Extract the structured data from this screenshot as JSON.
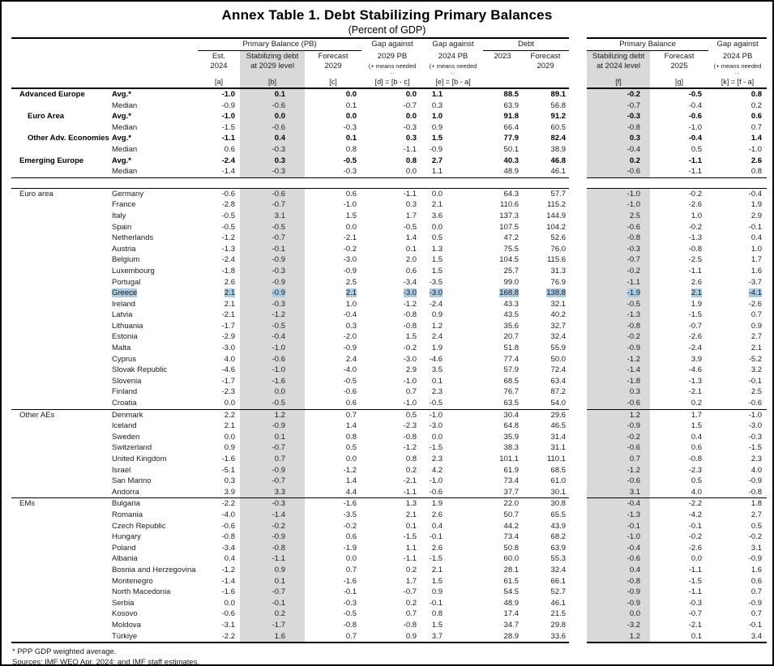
{
  "title": "Annex Table 1. Debt Stabilizing Primary Balances",
  "subtitle": "(Percent of GDP)",
  "colors": {
    "shaded_column": "#d9d9d9",
    "highlight": "#a9cbe3"
  },
  "header": {
    "groups": {
      "pb": "Primary Balance (PB)",
      "gap1": "Gap against",
      "gap2": "Gap against",
      "debt": "Debt",
      "pb2": "Primary Balance",
      "gap3": "Gap against"
    },
    "cols": {
      "a": {
        "l1": "Est.",
        "l2": "2024",
        "l3": "",
        "l4": "[a]"
      },
      "b": {
        "l1": "Stabilizing debt",
        "l2": "at 2029 level",
        "l3": "",
        "l4": "[b]"
      },
      "c": {
        "l1": "Forecast",
        "l2": "2029",
        "l3": "",
        "l4": "[c]"
      },
      "d": {
        "l1": "2029 PB",
        "l2": "(+ means needed",
        "l3": "…",
        "l4": "[d] = [b - c]"
      },
      "e": {
        "l1": "2024 PB",
        "l2": "(+ means needed",
        "l3": "…",
        "l4": "[e] = [b - a]"
      },
      "debt2023": {
        "l1": "2023",
        "l2": "",
        "l3": "",
        "l4": ""
      },
      "debt2029": {
        "l1": "Forecast",
        "l2": "2029",
        "l3": "",
        "l4": ""
      },
      "f": {
        "l1": "Stabilizing debt",
        "l2": "at 2024 level",
        "l3": "",
        "l4": "[f]"
      },
      "g": {
        "l1": "Forecast",
        "l2": "2025",
        "l3": "",
        "l4": "[g]"
      },
      "k": {
        "l1": "2024 PB",
        "l2": "(+ means needed",
        "l3": "…",
        "l4": "[k] = [f - a]"
      }
    }
  },
  "sections": [
    {
      "id": "aggregates",
      "rows": [
        {
          "group": "Advanced Europe",
          "name": "Avg.*",
          "bold": true,
          "v": [
            "-1.0",
            "0.1",
            "0.0",
            "0.0",
            "1.1",
            "88.5",
            "89.1",
            "-0.2",
            "-0.5",
            "0.8"
          ]
        },
        {
          "group": "",
          "name": "Median",
          "v": [
            "-0.9",
            "-0.6",
            "0.1",
            "-0.7",
            "0.3",
            "63.9",
            "56.8",
            "-0.7",
            "-0.4",
            "0.2"
          ]
        },
        {
          "group": "Euro Area",
          "name": "Avg.*",
          "bold": true,
          "indent": true,
          "v": [
            "-1.0",
            "0.0",
            "0.0",
            "0.0",
            "1.0",
            "91.8",
            "91.2",
            "-0.3",
            "-0.6",
            "0.6"
          ]
        },
        {
          "group": "",
          "name": "Median",
          "v": [
            "-1.5",
            "-0.6",
            "-0.3",
            "-0.3",
            "0.9",
            "66.4",
            "60.5",
            "-0.8",
            "-1.0",
            "0.7"
          ]
        },
        {
          "group": "Other Adv. Economies",
          "name": "Avg.*",
          "bold": true,
          "indent": true,
          "v": [
            "-1.1",
            "0.4",
            "0.1",
            "0.3",
            "1.5",
            "77.9",
            "82.4",
            "0.3",
            "-0.4",
            "1.4"
          ]
        },
        {
          "group": "",
          "name": "Median",
          "v": [
            "0.6",
            "-0.3",
            "0.8",
            "-1.1",
            "-0.9",
            "50.1",
            "38.9",
            "-0.4",
            "0.5",
            "-1.0"
          ]
        },
        {
          "group": "Emerging Europe",
          "name": "Avg.*",
          "bold": true,
          "v": [
            "-2.4",
            "0.3",
            "-0.5",
            "0.8",
            "2.7",
            "40.3",
            "46.8",
            "0.2",
            "-1.1",
            "2.6"
          ]
        },
        {
          "group": "",
          "name": "Median",
          "v": [
            "-1.4",
            "-0.3",
            "-0.3",
            "0.0",
            "1.1",
            "48.9",
            "46.1",
            "-0.6",
            "-1.1",
            "0.8"
          ]
        }
      ]
    },
    {
      "id": "euro-area",
      "rows": [
        {
          "group": "Euro area",
          "name": "Germany",
          "v": [
            "-0.6",
            "-0.6",
            "0.6",
            "-1.1",
            "0.0",
            "64.3",
            "57.7",
            "-1.0",
            "-0.2",
            "-0.4"
          ]
        },
        {
          "group": "",
          "name": "France",
          "v": [
            "-2.8",
            "-0.7",
            "-1.0",
            "0.3",
            "2.1",
            "110.6",
            "115.2",
            "-1.0",
            "-2.6",
            "1.9"
          ]
        },
        {
          "group": "",
          "name": "Italy",
          "v": [
            "-0.5",
            "3.1",
            "1.5",
            "1.7",
            "3.6",
            "137.3",
            "144.9",
            "2.5",
            "1.0",
            "2.9"
          ]
        },
        {
          "group": "",
          "name": "Spain",
          "v": [
            "-0.5",
            "-0.5",
            "0.0",
            "-0.5",
            "0.0",
            "107.5",
            "104.2",
            "-0.6",
            "-0.2",
            "-0.1"
          ]
        },
        {
          "group": "",
          "name": "Netherlands",
          "v": [
            "-1.2",
            "-0.7",
            "-2.1",
            "1.4",
            "0.5",
            "47.2",
            "52.6",
            "-0.8",
            "-1.3",
            "0.4"
          ]
        },
        {
          "group": "",
          "name": "Austria",
          "v": [
            "-1.3",
            "-0.1",
            "-0.2",
            "0.1",
            "1.3",
            "75.5",
            "76.0",
            "-0.3",
            "-0.8",
            "1.0"
          ]
        },
        {
          "group": "",
          "name": "Belgium",
          "v": [
            "-2.4",
            "-0.9",
            "-3.0",
            "2.0",
            "1.5",
            "104.5",
            "115.6",
            "-0.7",
            "-2.5",
            "1.7"
          ]
        },
        {
          "group": "",
          "name": "Luxembourg",
          "v": [
            "-1.8",
            "-0.3",
            "-0.9",
            "0.6",
            "1.5",
            "25.7",
            "31.3",
            "-0.2",
            "-1.1",
            "1.6"
          ]
        },
        {
          "group": "",
          "name": "Portugal",
          "v": [
            "2.6",
            "-0.9",
            "2.5",
            "-3.4",
            "-3.5",
            "99.0",
            "76.9",
            "-1.1",
            "2.6",
            "-3.7"
          ]
        },
        {
          "group": "",
          "name": "Greece",
          "highlight": true,
          "v": [
            "2.1",
            "-0.9",
            "2.1",
            "-3.0",
            "-3.0",
            "168.8",
            "138.8",
            "-1.9",
            "2.1",
            "-4.1"
          ]
        },
        {
          "group": "",
          "name": "Ireland",
          "v": [
            "2.1",
            "-0.3",
            "1.0",
            "-1.2",
            "-2.4",
            "43.3",
            "32.1",
            "-0.5",
            "1.9",
            "-2.6"
          ]
        },
        {
          "group": "",
          "name": "Latvia",
          "v": [
            "-2.1",
            "-1.2",
            "-0.4",
            "-0.8",
            "0.9",
            "43.5",
            "40.2",
            "-1.3",
            "-1.5",
            "0.7"
          ]
        },
        {
          "group": "",
          "name": "Lithuania",
          "v": [
            "-1.7",
            "-0.5",
            "0.3",
            "-0.8",
            "1.2",
            "35.6",
            "32.7",
            "-0.8",
            "-0.7",
            "0.9"
          ]
        },
        {
          "group": "",
          "name": "Estonia",
          "v": [
            "-2.9",
            "-0.4",
            "-2.0",
            "1.5",
            "2.4",
            "20.7",
            "32.4",
            "-0.2",
            "-2.6",
            "2.7"
          ]
        },
        {
          "group": "",
          "name": "Malta",
          "v": [
            "-3.0",
            "-1.0",
            "-0.9",
            "-0.2",
            "1.9",
            "51.8",
            "55.9",
            "-0.9",
            "-2.4",
            "2.1"
          ]
        },
        {
          "group": "",
          "name": "Cyprus",
          "v": [
            "4.0",
            "-0.6",
            "2.4",
            "-3.0",
            "-4.6",
            "77.4",
            "50.0",
            "-1.2",
            "3.9",
            "-5.2"
          ]
        },
        {
          "group": "",
          "name": "Slovak Republic",
          "v": [
            "-4.6",
            "-1.0",
            "-4.0",
            "2.9",
            "3.5",
            "57.9",
            "72.4",
            "-1.4",
            "-4.6",
            "3.2"
          ]
        },
        {
          "group": "",
          "name": "Slovenia",
          "v": [
            "-1.7",
            "-1.6",
            "-0.5",
            "-1.0",
            "0.1",
            "68.5",
            "63.4",
            "-1.8",
            "-1.3",
            "-0.1"
          ]
        },
        {
          "group": "",
          "name": "Finland",
          "v": [
            "-2.3",
            "0.0",
            "-0.6",
            "0.7",
            "2.3",
            "76.7",
            "87.2",
            "0.3",
            "-2.1",
            "2.5"
          ]
        },
        {
          "group": "",
          "name": "Croatia",
          "v": [
            "0.0",
            "-0.5",
            "0.6",
            "-1.0",
            "-0.5",
            "63.5",
            "54.0",
            "-0.6",
            "0.2",
            "-0.6"
          ]
        }
      ]
    },
    {
      "id": "other-aes",
      "rows": [
        {
          "group": "Other AEs",
          "name": "Denmark",
          "v": [
            "2.2",
            "1.2",
            "0.7",
            "0.5",
            "-1.0",
            "30.4",
            "29.6",
            "1.2",
            "1.7",
            "-1.0"
          ]
        },
        {
          "group": "",
          "name": "Iceland",
          "v": [
            "2.1",
            "-0.9",
            "1.4",
            "-2.3",
            "-3.0",
            "64.8",
            "46.5",
            "-0.9",
            "1.5",
            "-3.0"
          ]
        },
        {
          "group": "",
          "name": "Sweden",
          "v": [
            "0.0",
            "0.1",
            "0.8",
            "-0.8",
            "0.0",
            "35.9",
            "31.4",
            "-0.2",
            "0.4",
            "-0.3"
          ]
        },
        {
          "group": "",
          "name": "Switzerland",
          "v": [
            "0.9",
            "-0.7",
            "0.5",
            "-1.2",
            "-1.5",
            "38.3",
            "31.1",
            "-0.6",
            "0.6",
            "-1.5"
          ]
        },
        {
          "group": "",
          "name": "United Kingdom",
          "v": [
            "-1.6",
            "0.7",
            "0.0",
            "0.8",
            "2.3",
            "101.1",
            "110.1",
            "0.7",
            "-0.8",
            "2.3"
          ]
        },
        {
          "group": "",
          "name": "Israel",
          "v": [
            "-5.1",
            "-0.9",
            "-1.2",
            "0.2",
            "4.2",
            "61.9",
            "68.5",
            "-1.2",
            "-2.3",
            "4.0"
          ]
        },
        {
          "group": "",
          "name": "San Marino",
          "v": [
            "0.3",
            "-0.7",
            "1.4",
            "-2.1",
            "-1.0",
            "73.4",
            "61.0",
            "-0.6",
            "0.5",
            "-0.9"
          ]
        },
        {
          "group": "",
          "name": "Andorra",
          "v": [
            "3.9",
            "3.3",
            "4.4",
            "-1.1",
            "-0.6",
            "37.7",
            "30.1",
            "3.1",
            "4.0",
            "-0.8"
          ]
        }
      ]
    },
    {
      "id": "ems",
      "rows": [
        {
          "group": "EMs",
          "name": "Bulgaria",
          "v": [
            "-2.2",
            "-0.3",
            "-1.6",
            "1.3",
            "1.9",
            "22.0",
            "30.8",
            "-0.4",
            "-2.2",
            "1.8"
          ]
        },
        {
          "group": "",
          "name": "Romania",
          "v": [
            "-4.0",
            "-1.4",
            "-3.5",
            "2.1",
            "2.6",
            "50.7",
            "65.5",
            "-1.3",
            "-4.2",
            "2.7"
          ]
        },
        {
          "group": "",
          "name": "Czech Republic",
          "v": [
            "-0.6",
            "-0.2",
            "-0.2",
            "0.1",
            "0.4",
            "44.2",
            "43.9",
            "-0.1",
            "-0.1",
            "0.5"
          ]
        },
        {
          "group": "",
          "name": "Hungary",
          "v": [
            "-0.8",
            "-0.9",
            "0.6",
            "-1.5",
            "-0.1",
            "73.4",
            "68.2",
            "-1.0",
            "-0.2",
            "-0.2"
          ]
        },
        {
          "group": "",
          "name": "Poland",
          "v": [
            "-3.4",
            "-0.8",
            "-1.9",
            "1.1",
            "2.6",
            "50.8",
            "63.9",
            "-0.4",
            "-2.6",
            "3.1"
          ]
        },
        {
          "group": "",
          "name": "Albania",
          "v": [
            "0.4",
            "-1.1",
            "0.0",
            "-1.1",
            "-1.5",
            "60.0",
            "55.3",
            "-0.6",
            "0.0",
            "-0.9"
          ]
        },
        {
          "group": "",
          "name": "Bosnia and Herzegovina",
          "v": [
            "-1.2",
            "0.9",
            "0.7",
            "0.2",
            "2.1",
            "28.1",
            "32.4",
            "0.4",
            "-1.1",
            "1.6"
          ]
        },
        {
          "group": "",
          "name": "Montenegro",
          "v": [
            "-1.4",
            "0.1",
            "-1.6",
            "1.7",
            "1.5",
            "61.5",
            "66.1",
            "-0.8",
            "-1.5",
            "0.6"
          ]
        },
        {
          "group": "",
          "name": "North Macedonia",
          "v": [
            "-1.6",
            "-0.7",
            "-0.1",
            "-0.7",
            "0.9",
            "54.5",
            "52.7",
            "-0.9",
            "-1.1",
            "0.7"
          ]
        },
        {
          "group": "",
          "name": "Serbia",
          "v": [
            "0.0",
            "-0.1",
            "-0.3",
            "0.2",
            "-0.1",
            "48.9",
            "46.1",
            "-0.9",
            "-0.3",
            "-0.9"
          ]
        },
        {
          "group": "",
          "name": "Kosovo",
          "v": [
            "-0.6",
            "0.2",
            "-0.5",
            "0.7",
            "0.8",
            "17.4",
            "21.5",
            "0.0",
            "-0.7",
            "0.7"
          ]
        },
        {
          "group": "",
          "name": "Moldova",
          "v": [
            "-3.1",
            "-1.7",
            "-0.8",
            "-0.8",
            "1.5",
            "34.7",
            "29.8",
            "-3.2",
            "-2.1",
            "-0.1"
          ]
        },
        {
          "group": "",
          "name": "Türkiye",
          "v": [
            "-2.2",
            "1.6",
            "0.7",
            "0.9",
            "3.7",
            "28.9",
            "33.6",
            "1.2",
            "0.1",
            "3.4"
          ]
        }
      ]
    }
  ],
  "footnotes": [
    "* PPP GDP weighted average.",
    "Sources: IMF WEO Apr. 2024; and IMF staff estimates."
  ]
}
